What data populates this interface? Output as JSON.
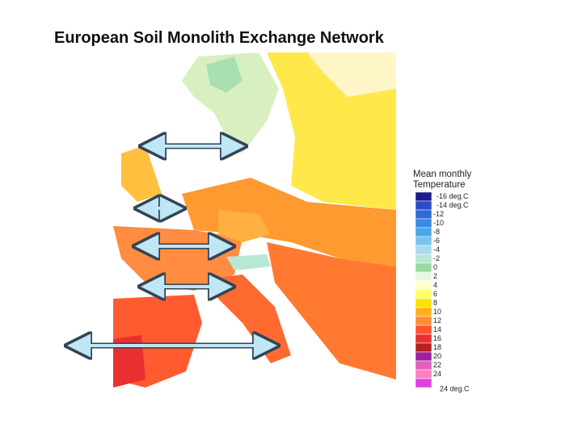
{
  "header": {
    "title": "European Soil Monolith Exchange Network"
  },
  "legend": {
    "title": "Mean monthly Temperature",
    "entries": [
      {
        "label": "-16 deg.C",
        "color": "#1c1c8a"
      },
      {
        "label": "-14 deg.C",
        "color": "#2a4cc8"
      },
      {
        "label": "-12",
        "color": "#2f6ad8"
      },
      {
        "label": "-10",
        "color": "#3a8ae4"
      },
      {
        "label": "-8",
        "color": "#48a8ec"
      },
      {
        "label": "-6",
        "color": "#78c4f0"
      },
      {
        "label": "-4",
        "color": "#a6daf0"
      },
      {
        "label": "-2",
        "color": "#b8e8d4"
      },
      {
        "label": "0",
        "color": "#96dc9c"
      },
      {
        "label": "2",
        "color": "#e6f6e0"
      },
      {
        "label": "4",
        "color": "#ffffd2"
      },
      {
        "label": "6",
        "color": "#ffff66"
      },
      {
        "label": "8",
        "color": "#ffe000"
      },
      {
        "label": "10",
        "color": "#ffb020"
      },
      {
        "label": "12",
        "color": "#ff8c30"
      },
      {
        "label": "14",
        "color": "#ff5030"
      },
      {
        "label": "16",
        "color": "#e83030"
      },
      {
        "label": "18",
        "color": "#b82020"
      },
      {
        "label": "20",
        "color": "#a020a0"
      },
      {
        "label": "22",
        "color": "#e060c0"
      },
      {
        "label": "24",
        "color": "#ff80c0"
      },
      {
        "label": "24 deg.C",
        "color": "#e040e0"
      }
    ]
  }
}
